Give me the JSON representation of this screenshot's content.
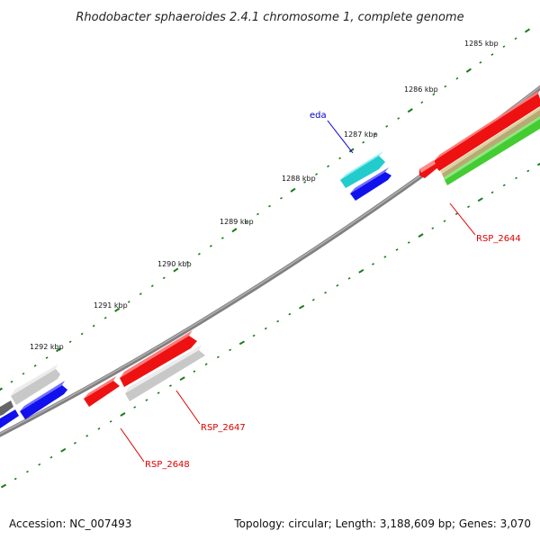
{
  "title": "Rhodobacter sphaeroides 2.4.1 chromosome 1, complete genome",
  "footer": {
    "accession": "Accession: NC_007493",
    "summary": "Topology: circular; Length: 3,188,609 bp; Genes: 3,070"
  },
  "ticks": [
    "1285 kbp",
    "1286 kbp",
    "1287 kbp",
    "1288 kbp",
    "1289 kbp",
    "1290 kbp",
    "1291 kbp",
    "1292 kbp"
  ],
  "gene_labels": {
    "eda": "eda",
    "rsp_2644": "RSP_2644",
    "rsp_2647": "RSP_2647",
    "rsp_2648": "RSP_2648"
  },
  "colors": {
    "backbone": "#808080",
    "tick": "#1a7a1a",
    "red_gene": "#ee1111",
    "blue_gene": "#1111ee",
    "cyan_gene": "#22cccc",
    "gray_gene": "#c8c8c8",
    "dark_gray_gene": "#666666",
    "tan_gene": "#b8aa72",
    "green_gene": "#44cc33",
    "label_red": "#dd0000",
    "label_blue": "#0000cc"
  }
}
